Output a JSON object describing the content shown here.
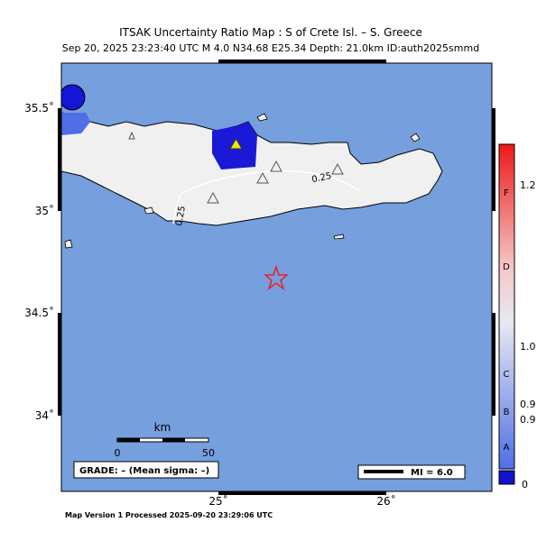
{
  "header": {
    "title": "ITSAK Uncertainty Ratio Map : S of Crete Isl. – S. Greece",
    "subtitle": "Sep 20, 2025 23:23:40 UTC   M 4.0   N34.68 E25.34   Depth: 21.0km   ID:auth2025smmd"
  },
  "map": {
    "lat_ticks": [
      "35.5˚",
      "35˚",
      "34.5˚",
      "34˚"
    ],
    "lon_ticks": [
      "25˚",
      "26˚"
    ],
    "contour_labels": [
      "0.25",
      "0.25"
    ],
    "scale": {
      "unit": "km",
      "start": "0",
      "end": "50"
    },
    "grade": "GRADE: – (Mean sigma: –)",
    "mi": "MI = 6.0"
  },
  "colorbar": {
    "letters": [
      "F",
      "D",
      "C",
      "B",
      "A"
    ],
    "values": [
      "1.2",
      "1.0",
      "0.9",
      "0.9",
      "0"
    ]
  },
  "footer": "Map Version 1 Processed 2025-09-20 23:29:06 UTC"
}
